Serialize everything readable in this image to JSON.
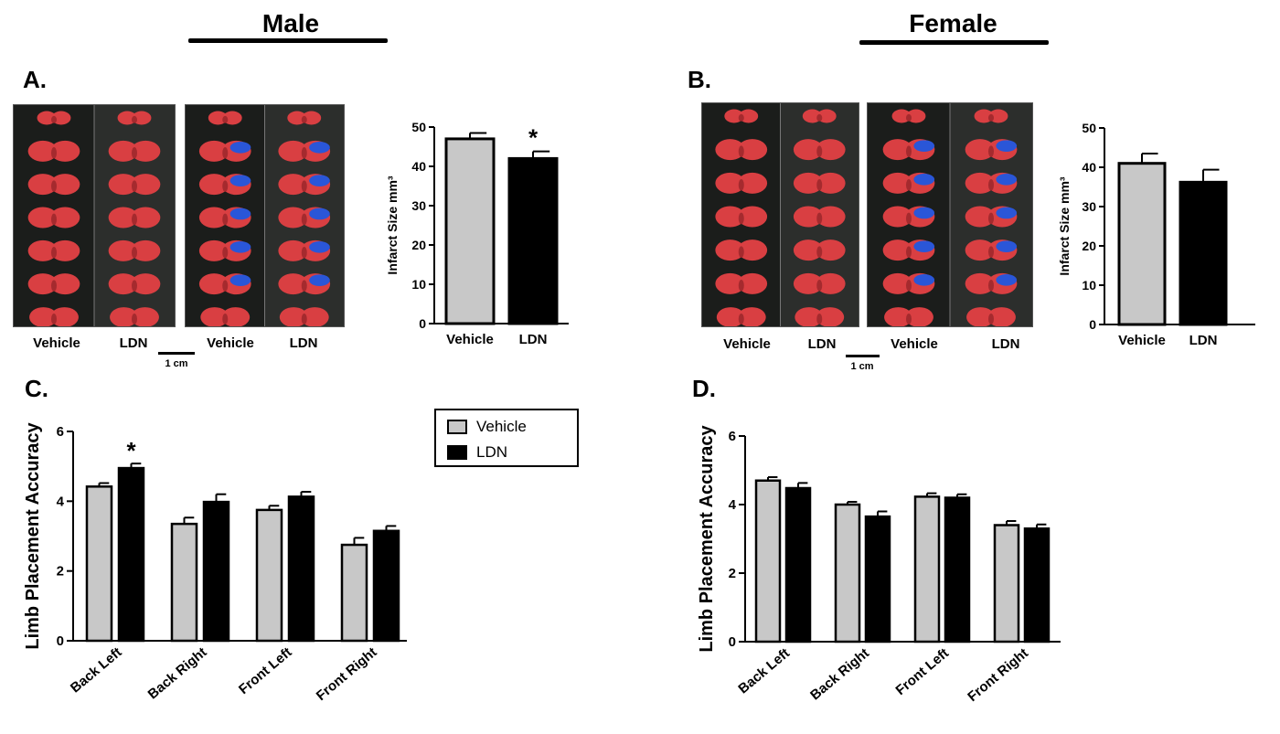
{
  "headers": {
    "male": "Male",
    "female": "Female"
  },
  "panels": {
    "a": "A.",
    "b": "B.",
    "c": "C.",
    "d": "D."
  },
  "photos": {
    "labels": {
      "vehicle": "Vehicle",
      "ldn": "LDN"
    },
    "scale_bar": "1 cm",
    "colors": {
      "tissue": "#d93f42",
      "infarct": "#2a56d8",
      "background": "#1b1d1b"
    }
  },
  "legend": {
    "vehicle": "Vehicle",
    "ldn": "LDN"
  },
  "colors": {
    "vehicle": "#c8c8c8",
    "ldn": "#000000"
  },
  "chart_data": [
    {
      "id": "A",
      "type": "bar",
      "title": "",
      "categories": [
        "Vehicle",
        "LDN"
      ],
      "values": [
        47,
        42
      ],
      "errors": [
        1.5,
        1.8
      ],
      "significance": [
        "",
        "*"
      ],
      "ylabel": "Infarct Size mm³",
      "ylim": [
        0,
        50
      ],
      "yticks": [
        "0",
        "10",
        "20",
        "30",
        "40",
        "50"
      ]
    },
    {
      "id": "B",
      "type": "bar",
      "title": "",
      "categories": [
        "Vehicle",
        "LDN"
      ],
      "values": [
        41,
        36.2
      ],
      "errors": [
        2.5,
        3.2
      ],
      "significance": [
        "",
        ""
      ],
      "ylabel": "Infarct Size mm³",
      "ylim": [
        0,
        50
      ],
      "yticks": [
        "0",
        "10",
        "20",
        "30",
        "40",
        "50"
      ]
    },
    {
      "id": "C",
      "type": "bar",
      "title": "",
      "categories": [
        "Back Left",
        "Back Right",
        "Front Left",
        "Front Right"
      ],
      "series": [
        {
          "name": "Vehicle",
          "values": [
            4.42,
            3.35,
            3.75,
            2.75
          ],
          "errors": [
            0.1,
            0.18,
            0.12,
            0.2
          ]
        },
        {
          "name": "LDN",
          "values": [
            4.95,
            3.98,
            4.13,
            3.15
          ],
          "errors": [
            0.13,
            0.22,
            0.14,
            0.14
          ]
        }
      ],
      "significance": [
        [
          "",
          "*"
        ],
        [
          "",
          ""
        ],
        [
          "",
          ""
        ],
        [
          "",
          ""
        ]
      ],
      "ylabel": "Limb Placement Accuracy",
      "ylim": [
        0,
        6
      ],
      "yticks": [
        "0",
        "2",
        "4",
        "6"
      ],
      "legend": "top-right"
    },
    {
      "id": "D",
      "type": "bar",
      "title": "",
      "categories": [
        "Back Left",
        "Back Right",
        "Front Left",
        "Front Right"
      ],
      "series": [
        {
          "name": "Vehicle",
          "values": [
            4.7,
            4.0,
            4.23,
            3.4
          ],
          "errors": [
            0.1,
            0.08,
            0.1,
            0.12
          ]
        },
        {
          "name": "LDN",
          "values": [
            4.48,
            3.65,
            4.2,
            3.3
          ],
          "errors": [
            0.15,
            0.15,
            0.1,
            0.12
          ]
        }
      ],
      "significance": [
        [
          "",
          ""
        ],
        [
          "",
          ""
        ],
        [
          "",
          ""
        ],
        [
          "",
          ""
        ]
      ],
      "ylabel": "Limb Placement Accuracy",
      "ylim": [
        0,
        6
      ],
      "yticks": [
        "0",
        "2",
        "4",
        "6"
      ]
    }
  ]
}
